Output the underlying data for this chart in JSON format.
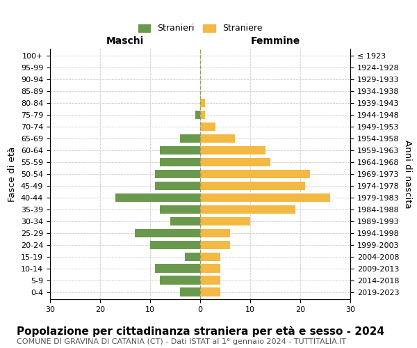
{
  "age_groups": [
    "0-4",
    "5-9",
    "10-14",
    "15-19",
    "20-24",
    "25-29",
    "30-34",
    "35-39",
    "40-44",
    "45-49",
    "50-54",
    "55-59",
    "60-64",
    "65-69",
    "70-74",
    "75-79",
    "80-84",
    "85-89",
    "90-94",
    "95-99",
    "100+"
  ],
  "birth_years": [
    "2019-2023",
    "2014-2018",
    "2009-2013",
    "2004-2008",
    "1999-2003",
    "1994-1998",
    "1989-1993",
    "1984-1988",
    "1979-1983",
    "1974-1978",
    "1969-1973",
    "1964-1968",
    "1959-1963",
    "1954-1958",
    "1949-1953",
    "1944-1948",
    "1939-1943",
    "1934-1938",
    "1929-1933",
    "1924-1928",
    "≤ 1923"
  ],
  "males": [
    4,
    8,
    9,
    3,
    10,
    13,
    6,
    8,
    17,
    9,
    9,
    8,
    8,
    4,
    0,
    1,
    0,
    0,
    0,
    0,
    0
  ],
  "females": [
    4,
    4,
    4,
    4,
    6,
    6,
    10,
    19,
    26,
    21,
    22,
    14,
    13,
    7,
    3,
    1,
    1,
    0,
    0,
    0,
    0
  ],
  "male_color": "#6a994e",
  "female_color": "#f4b942",
  "grid_color": "#cccccc",
  "center_line_color": "#999966",
  "title": "Popolazione per cittadinanza straniera per età e sesso - 2024",
  "subtitle": "COMUNE DI GRAVINA DI CATANIA (CT) - Dati ISTAT al 1° gennaio 2024 - TUTTITALIA.IT",
  "xlabel_left": "Maschi",
  "xlabel_right": "Femmine",
  "ylabel_left": "Fasce di età",
  "ylabel_right": "Anni di nascita",
  "legend_male": "Stranieri",
  "legend_female": "Straniere",
  "xlim": 30,
  "title_fontsize": 11,
  "subtitle_fontsize": 8,
  "header_fontsize": 10,
  "label_fontsize": 9.5,
  "tick_fontsize": 8,
  "legend_fontsize": 9
}
